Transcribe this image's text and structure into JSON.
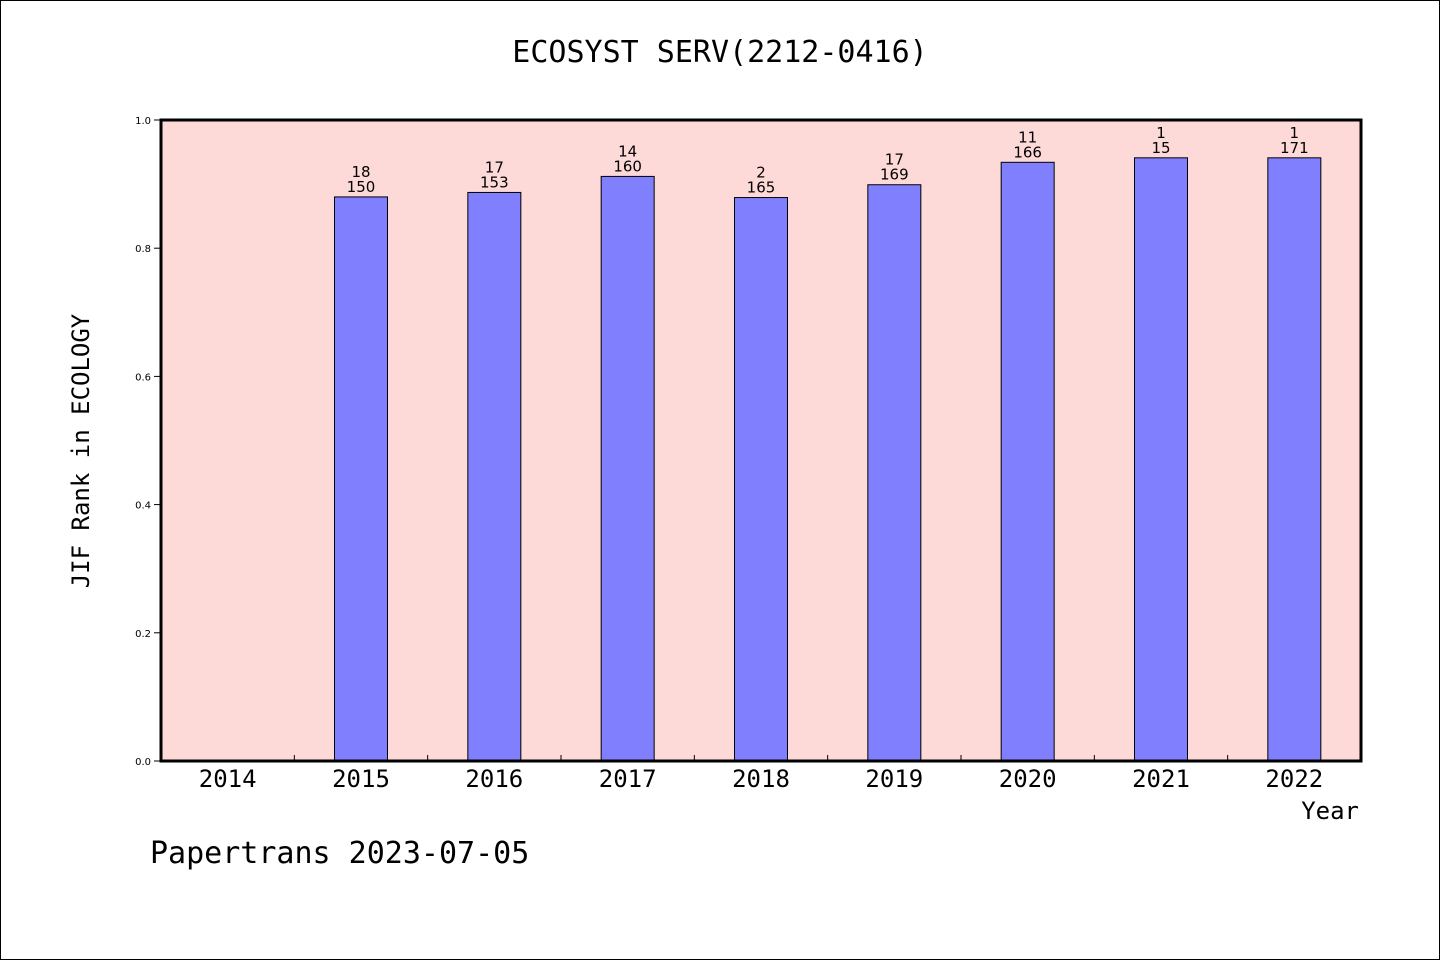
{
  "colors": {
    "plot_background": "#fddad8",
    "bar_fill": "#8080ff",
    "bar_stroke": "#000000",
    "axis": "#000000"
  },
  "chart_data": {
    "type": "bar",
    "title": "ECOSYST SERV(2212-0416)",
    "xlabel": "Year",
    "ylabel": "JIF Rank in ECOLOGY",
    "ylim": [
      0,
      1.0
    ],
    "yticks": [
      "0.0",
      "0.2",
      "0.4",
      "0.6",
      "0.8",
      "1.0"
    ],
    "grid": false,
    "categories": [
      "2014",
      "2015",
      "2016",
      "2017",
      "2018",
      "2019",
      "2020",
      "2021",
      "2022"
    ],
    "values": [
      null,
      0.88,
      0.887,
      0.912,
      0.879,
      0.899,
      0.934,
      0.941,
      0.941
    ],
    "labels_top": [
      "",
      "18",
      "17",
      "14",
      "2",
      "17",
      "11",
      "1",
      "1"
    ],
    "labels_bottom": [
      "",
      "150",
      "153",
      "160",
      "165",
      "169",
      "166",
      "15",
      "171"
    ]
  },
  "footer": "Papertrans 2023-07-05"
}
